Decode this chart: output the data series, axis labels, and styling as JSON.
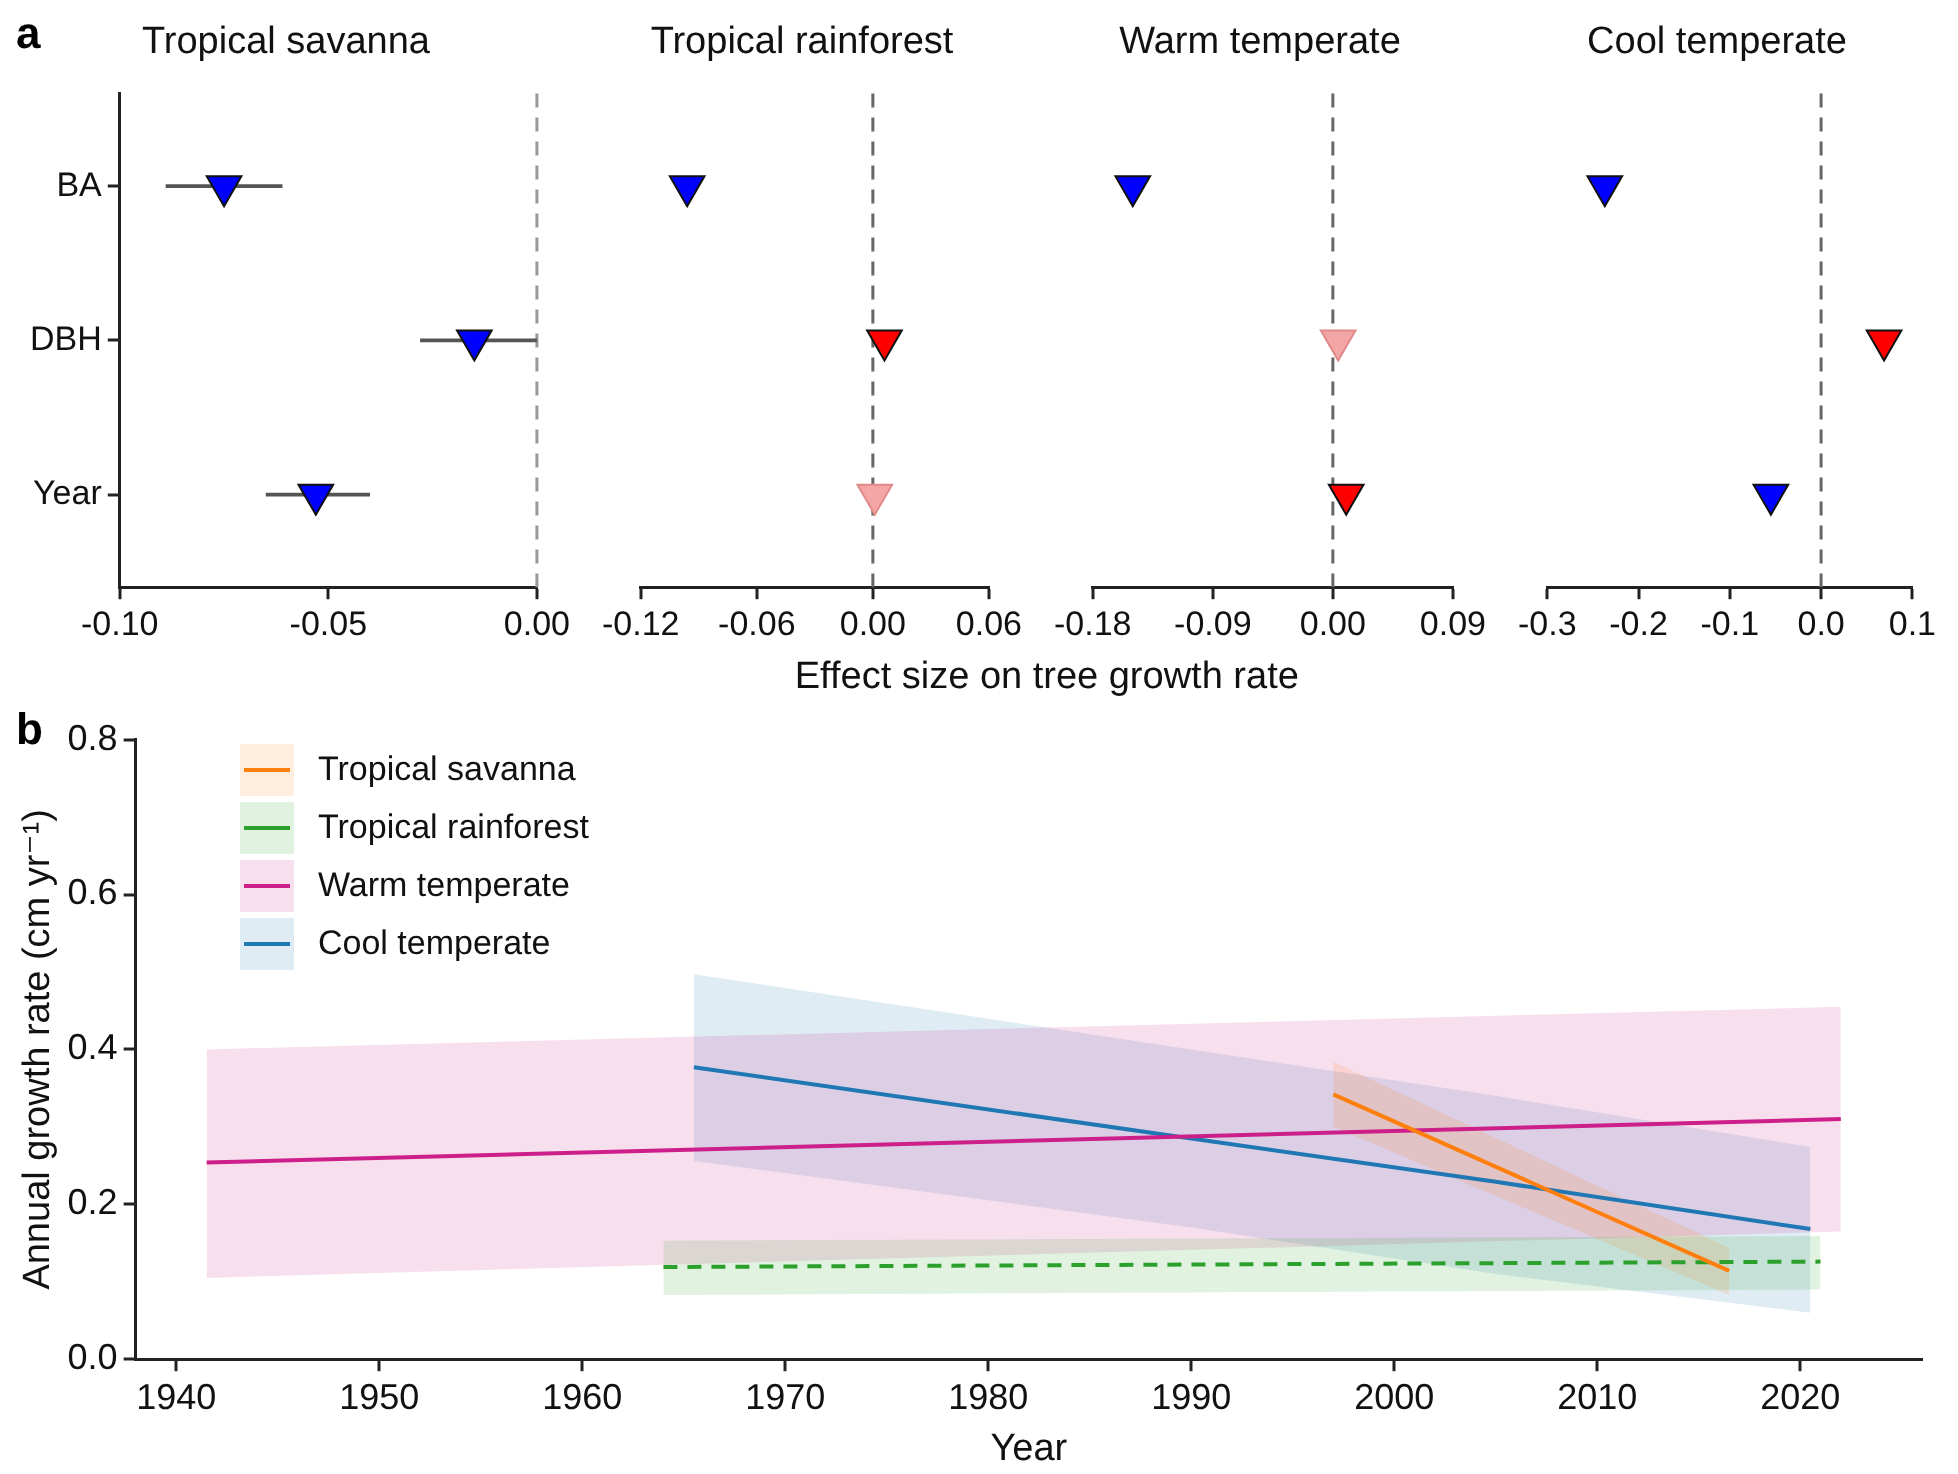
{
  "chart_data": [
    {
      "type": "scatter",
      "orientation": "horizontal",
      "title": "Tropical savanna",
      "annotations": [
        "a"
      ],
      "categories": [
        "BA",
        "DBH",
        "Year"
      ],
      "values": [
        -0.075,
        -0.015,
        -0.053
      ],
      "errors": [
        [
          -0.089,
          -0.061
        ],
        [
          -0.028,
          0.0
        ],
        [
          -0.065,
          -0.04
        ]
      ],
      "colors": [
        "#0000ff",
        "#0000ff",
        "#0000ff"
      ],
      "marker": "triangle",
      "xlim": [
        -0.1,
        0.0
      ],
      "xticks": [
        {
          "value": -0.1,
          "label": "-0.10"
        },
        {
          "value": -0.05,
          "label": "-0.05"
        },
        {
          "value": 0,
          "label": "0.00"
        }
      ],
      "ref_lines": [
        {
          "axis": "x",
          "value": 0,
          "color": "#999999",
          "line_style": "dashed"
        }
      ]
    },
    {
      "type": "scatter",
      "orientation": "horizontal",
      "title": "Tropical rainforest",
      "xlabel": "Effect size on tree growth rate",
      "categories": [
        null,
        null,
        null
      ],
      "values": [
        -0.096,
        0.006,
        0.001
      ],
      "colors": [
        "#0000ff",
        "#ff0000",
        "#f4a6a6"
      ],
      "marker": "triangle",
      "tick_labels": "x",
      "xlim": [
        -0.12,
        0.06
      ],
      "xticks": [
        {
          "value": -0.12,
          "label": "-0.12"
        },
        {
          "value": -0.06,
          "label": "-0.06"
        },
        {
          "value": 0,
          "label": "0.00"
        },
        {
          "value": 0.06,
          "label": "0.06"
        }
      ],
      "ref_lines": [
        {
          "axis": "x",
          "value": 0,
          "color": "#666666",
          "line_style": "dashed"
        }
      ]
    },
    {
      "type": "scatter",
      "orientation": "horizontal",
      "title": "Warm temperate",
      "categories": [
        null,
        null,
        null
      ],
      "values": [
        -0.15,
        0.004,
        0.01
      ],
      "colors": [
        "#0000ff",
        "#f4a6a6",
        "#ff0000"
      ],
      "marker": "triangle",
      "tick_labels": "x",
      "xlim": [
        -0.18,
        0.09
      ],
      "xticks": [
        {
          "value": -0.18,
          "label": "-0.18"
        },
        {
          "value": -0.09,
          "label": "-0.09"
        },
        {
          "value": 0,
          "label": "0.00"
        },
        {
          "value": 0.09,
          "label": "0.09"
        }
      ],
      "ref_lines": [
        {
          "axis": "x",
          "value": 0,
          "color": "#666666",
          "line_style": "dashed"
        }
      ]
    },
    {
      "type": "scatter",
      "orientation": "horizontal",
      "title": "Cool temperate",
      "categories": [
        null,
        null,
        null
      ],
      "values": [
        -0.237,
        0.069,
        -0.055
      ],
      "colors": [
        "#0000ff",
        "#ff0000",
        "#0000ff"
      ],
      "marker": "triangle",
      "tick_labels": "x",
      "xlim": [
        -0.3,
        0.1
      ],
      "xticks": [
        {
          "value": -0.3,
          "label": "-0.3"
        },
        {
          "value": -0.2,
          "label": "-0.2"
        },
        {
          "value": -0.1,
          "label": "-0.1"
        },
        {
          "value": 0,
          "label": "0.0"
        },
        {
          "value": 0.1,
          "label": "0.1"
        }
      ],
      "ref_lines": [
        {
          "axis": "x",
          "value": 0,
          "color": "#666666",
          "line_style": "dashed"
        }
      ]
    },
    {
      "type": "line",
      "annotations": [
        "b"
      ],
      "xlabel": "Year",
      "ylabel": "Annual growth rate (cm yr⁻¹)",
      "legend": "top left",
      "xlim": [
        1938,
        2026
      ],
      "xticks": [
        1940,
        1950,
        1960,
        1970,
        1980,
        1990,
        2000,
        2010,
        2020
      ],
      "ylim": [
        0,
        0.8
      ],
      "yticks": [
        {
          "value": 0,
          "label": "0.0"
        },
        {
          "value": 0.2,
          "label": "0.2"
        },
        {
          "value": 0.4,
          "label": "0.4"
        },
        {
          "value": 0.6,
          "label": "0.6"
        },
        {
          "value": 0.8,
          "label": "0.8"
        }
      ],
      "series": [
        {
          "name": "Tropical savanna",
          "color": "#ff7f0e",
          "line_style": "solid",
          "x": [
            1997,
            2016.5
          ],
          "values": [
            0.342,
            0.114
          ],
          "lower": [
            0.3,
            0.083
          ],
          "upper": [
            0.384,
            0.144
          ]
        },
        {
          "name": "Tropical rainforest",
          "color": "#2ca02c",
          "line_style": "dashed",
          "x": [
            1964,
            2021
          ],
          "values": [
            0.119,
            0.126
          ],
          "lower": [
            0.083,
            0.09
          ],
          "upper": [
            0.153,
            0.159
          ]
        },
        {
          "name": "Warm temperate",
          "color": "#cc1f8a",
          "line_style": "solid",
          "x": [
            1941.5,
            2022
          ],
          "values": [
            0.254,
            0.31
          ],
          "lower": [
            0.105,
            0.165
          ],
          "upper": [
            0.4,
            0.455
          ]
        },
        {
          "name": "Cool temperate",
          "color": "#1f77b4",
          "line_style": "solid",
          "x": [
            1965.5,
            1990,
            2005,
            2020.5
          ],
          "values": [
            0.377,
            0.285,
            0.229,
            0.168
          ],
          "lower": [
            0.256,
            0.17,
            0.11,
            0.06
          ],
          "upper": [
            0.497,
            0.4,
            0.34,
            0.274
          ]
        }
      ]
    }
  ]
}
